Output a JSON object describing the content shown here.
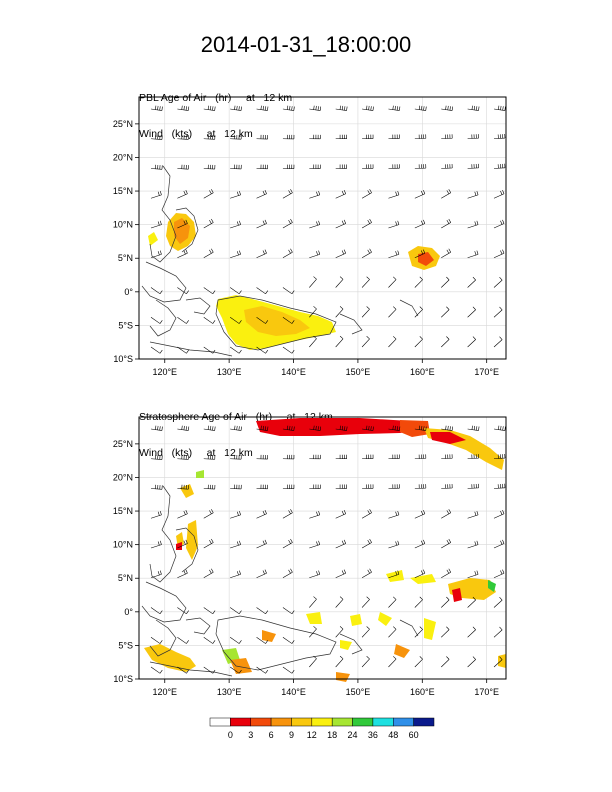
{
  "title": "2014-01-31_18:00:00",
  "panels": [
    {
      "id": "pbl",
      "line1": "PBL Age of Air   (hr)     at   12 km",
      "line2": "Wind   (kts)     at   12 km"
    },
    {
      "id": "strat",
      "line1": "Stratosphere Age of Air   (hr)     at   12 km",
      "line2": "Wind   (kts)     at   12 km"
    }
  ],
  "axes": {
    "lon_labels": [
      "120°E",
      "130°E",
      "140°E",
      "150°E",
      "160°E",
      "170°E"
    ],
    "lat_labels": [
      "25°N",
      "20°N",
      "15°N",
      "10°N",
      "5°N",
      "0°",
      "5°S",
      "10°S"
    ],
    "lon_values": [
      120,
      130,
      140,
      150,
      160,
      170
    ],
    "lat_values": [
      25,
      20,
      15,
      10,
      5,
      0,
      -5,
      -10
    ],
    "lon_range": [
      116,
      173
    ],
    "lat_range": [
      -10,
      29
    ]
  },
  "colorbar": {
    "labels": [
      "0",
      "3",
      "6",
      "9",
      "12",
      "18",
      "24",
      "36",
      "48",
      "60"
    ],
    "colors": [
      "#ffffff",
      "#e8000b",
      "#f24a0a",
      "#f7930c",
      "#f9c80e",
      "#faf00f",
      "#a6e632",
      "#31c93a",
      "#1de0e0",
      "#2f8fe8",
      "#0a1a8c"
    ]
  }
}
